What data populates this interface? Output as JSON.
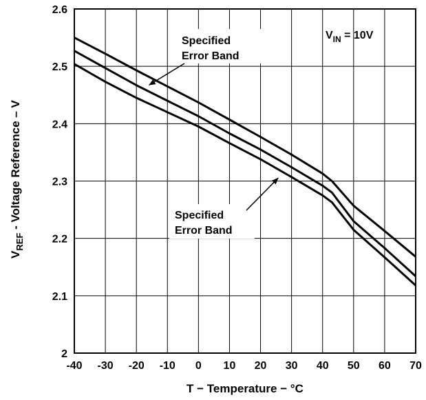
{
  "chart_data": {
    "type": "line",
    "title": "",
    "xlabel": "T − Temperature − °C",
    "ylabel": {
      "prefix": "V",
      "subscript": "REF",
      "suffix": " - Voltage Reference – V"
    },
    "xlim": [
      -40,
      70
    ],
    "ylim": [
      2.0,
      2.6
    ],
    "grid": true,
    "x_ticks": [
      -40,
      -30,
      -20,
      -10,
      0,
      10,
      20,
      30,
      40,
      50,
      60,
      70
    ],
    "x_tick_labels": [
      "-40",
      "-30",
      "-20",
      "-10",
      "0",
      "10",
      "20",
      "30",
      "40",
      "50",
      "60",
      "70"
    ],
    "y_ticks": [
      2.0,
      2.1,
      2.2,
      2.3,
      2.4,
      2.5,
      2.6
    ],
    "y_tick_labels": [
      "2",
      "2.1",
      "2.2",
      "2.3",
      "2.4",
      "2.5",
      "2.6"
    ],
    "series": [
      {
        "x": [
          -40,
          -30,
          -20,
          -10,
          0,
          10,
          20,
          30,
          40,
          43,
          50,
          60,
          70
        ],
        "values": [
          2.55,
          2.522,
          2.493,
          2.465,
          2.437,
          2.407,
          2.377,
          2.346,
          2.313,
          2.3,
          2.257,
          2.213,
          2.168
        ]
      },
      {
        "x": [
          -40,
          -30,
          -20,
          -10,
          0,
          10,
          20,
          30,
          40,
          43,
          50,
          60,
          70
        ],
        "values": [
          2.527,
          2.497,
          2.467,
          2.44,
          2.413,
          2.383,
          2.355,
          2.324,
          2.292,
          2.28,
          2.23,
          2.183,
          2.134
        ]
      },
      {
        "x": [
          -40,
          -30,
          -20,
          -10,
          0,
          10,
          20,
          30,
          40,
          43,
          50,
          60,
          70
        ],
        "values": [
          2.504,
          2.473,
          2.445,
          2.42,
          2.395,
          2.366,
          2.338,
          2.307,
          2.275,
          2.263,
          2.215,
          2.167,
          2.118
        ]
      }
    ],
    "annotations": {
      "condition": {
        "prefix": "V",
        "subscript": "IN",
        "suffix": " = 10V"
      },
      "upper_band": {
        "line1": "Specified",
        "line2": "Error Band",
        "arrow_to": [
          -15,
          2.465
        ]
      },
      "lower_band": {
        "line1": "Specified",
        "line2": "Error Band",
        "arrow_to": [
          25,
          2.31
        ]
      }
    }
  }
}
